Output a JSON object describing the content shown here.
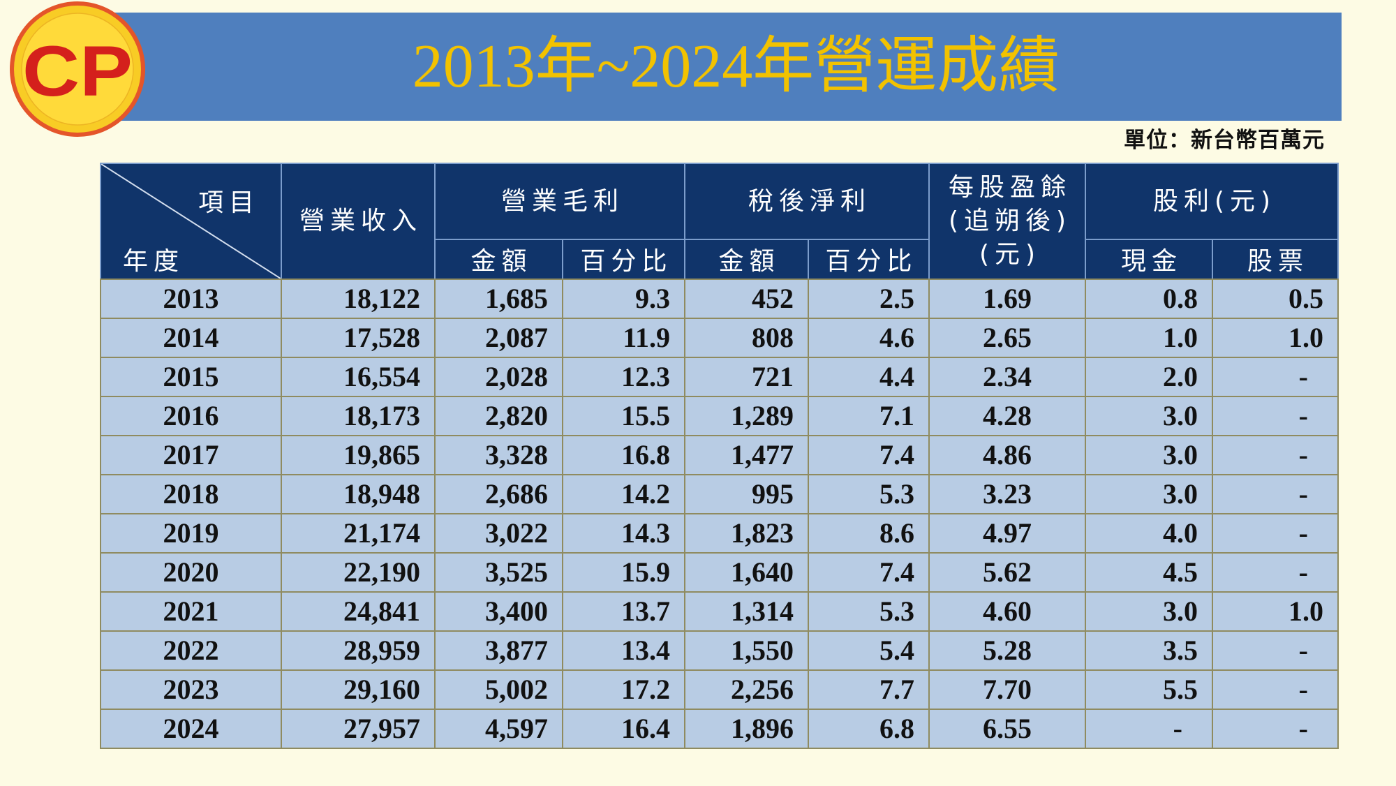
{
  "logo": {
    "text": "CP"
  },
  "title": "2013年~2024年營運成績",
  "unit": "單位：新台幣百萬元",
  "table": {
    "header": {
      "corner_top": "項目",
      "corner_bottom": "年度",
      "revenue": "營業收入",
      "gross_profit": "營業毛利",
      "net_income": "稅後淨利",
      "eps": [
        "每股盈餘",
        "(追朔後)",
        "(元)"
      ],
      "dividend": "股利(元)",
      "gp_amount": "金額",
      "gp_pct": "百分比",
      "ni_amount": "金額",
      "ni_pct": "百分比",
      "div_cash": "現金",
      "div_stock": "股票"
    },
    "rows": [
      [
        "2013",
        "18,122",
        "1,685",
        "9.3",
        "452",
        "2.5",
        "1.69",
        "0.8",
        "0.5"
      ],
      [
        "2014",
        "17,528",
        "2,087",
        "11.9",
        "808",
        "4.6",
        "2.65",
        "1.0",
        "1.0"
      ],
      [
        "2015",
        "16,554",
        "2,028",
        "12.3",
        "721",
        "4.4",
        "2.34",
        "2.0",
        "-"
      ],
      [
        "2016",
        "18,173",
        "2,820",
        "15.5",
        "1,289",
        "7.1",
        "4.28",
        "3.0",
        "-"
      ],
      [
        "2017",
        "19,865",
        "3,328",
        "16.8",
        "1,477",
        "7.4",
        "4.86",
        "3.0",
        "-"
      ],
      [
        "2018",
        "18,948",
        "2,686",
        "14.2",
        "995",
        "5.3",
        "3.23",
        "3.0",
        "-"
      ],
      [
        "2019",
        "21,174",
        "3,022",
        "14.3",
        "1,823",
        "8.6",
        "4.97",
        "4.0",
        "-"
      ],
      [
        "2020",
        "22,190",
        "3,525",
        "15.9",
        "1,640",
        "7.4",
        "5.62",
        "4.5",
        "-"
      ],
      [
        "2021",
        "24,841",
        "3,400",
        "13.7",
        "1,314",
        "5.3",
        "4.60",
        "3.0",
        "1.0"
      ],
      [
        "2022",
        "28,959",
        "3,877",
        "13.4",
        "1,550",
        "5.4",
        "5.28",
        "3.5",
        "-"
      ],
      [
        "2023",
        "29,160",
        "5,002",
        "17.2",
        "2,256",
        "7.7",
        "7.70",
        "5.5",
        "-"
      ],
      [
        "2024",
        "27,957",
        "4,597",
        "16.4",
        "1,896",
        "6.8",
        "6.55",
        "-",
        "-"
      ]
    ]
  },
  "colors": {
    "page_bg": "#FDFBE4",
    "title_bar": "#4F7FBE",
    "title_text": "#F2C200",
    "header_bg": "#10346A",
    "header_text": "#FFFFFF",
    "header_grid": "#7C9DCC",
    "data_bg": "#B8CCE4",
    "data_grid": "#8F8B60",
    "logo_ring": "#E4552A",
    "logo_yellow": "#F8CC25",
    "logo_inner": "#FFDA3A",
    "logo_text": "#D4201C"
  }
}
